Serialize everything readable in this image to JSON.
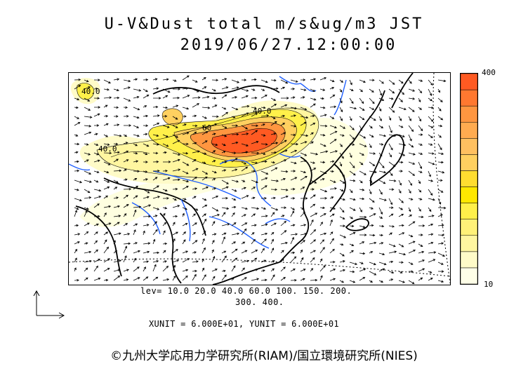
{
  "title": {
    "line1": "U-V&Dust total m/s&ug/m3 JST",
    "line2": "2019/06/27.12:00:00"
  },
  "legend": {
    "max_label": "400",
    "min_label": "10",
    "colors": [
      "#ffffe8",
      "#fffbc8",
      "#fff6a0",
      "#fff178",
      "#fff04a",
      "#ffe800",
      "#ffdd30",
      "#ffd060",
      "#ffc060",
      "#ffab50",
      "#ff9640",
      "#ff7830",
      "#ff5a22"
    ]
  },
  "contour_labels": [
    "40.0",
    "40.0",
    "60",
    "40.0"
  ],
  "levels": {
    "line1": "lev= 10.0 20.0 40.0 60.0 100. 150. 200.",
    "line2": "300. 400."
  },
  "units": "XUNIT = 6.000E+01, YUNIT = 6.000E+01",
  "copyright": "©九州大学応用力学研究所(RIAM)/国立環境研究所(NIES)"
}
